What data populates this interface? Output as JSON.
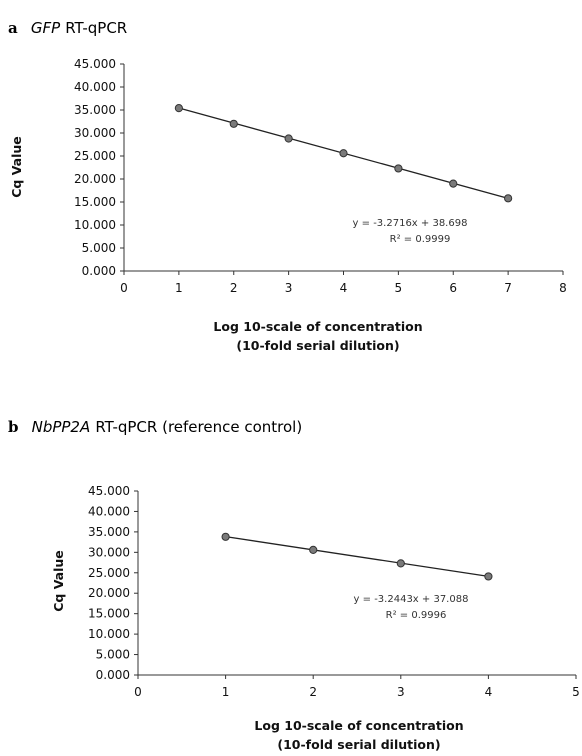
{
  "chart_data": [
    {
      "type": "scatter",
      "panel_letter": "a",
      "title_italic": "GFP",
      "title_rest": " RT-qPCR",
      "xlabel_line1": "Log 10-scale of concentration",
      "xlabel_line2": "(10-fold serial dilution)",
      "ylabel": "Cq Value",
      "xlim": [
        0,
        8
      ],
      "ylim": [
        0,
        45
      ],
      "xticks": [
        "0",
        "1",
        "2",
        "3",
        "4",
        "5",
        "6",
        "7",
        "8"
      ],
      "yticks": [
        "0.000",
        "5.000",
        "10.000",
        "15.000",
        "20.000",
        "25.000",
        "30.000",
        "35.000",
        "40.000",
        "45.000"
      ],
      "series": [
        {
          "x": [
            1,
            2,
            3,
            4,
            5,
            6,
            7
          ],
          "y": [
            35.4,
            32.0,
            28.8,
            25.6,
            22.3,
            19.0,
            15.8
          ]
        }
      ],
      "trendline": {
        "slope": -3.2716,
        "intercept": 38.698,
        "x_range": [
          1,
          7
        ]
      },
      "equation_text": "y = -3.2716x + 38.698",
      "r2_text": "R² = 0.9999",
      "grid": false
    },
    {
      "type": "scatter",
      "panel_letter": "b",
      "title_italic": "NbPP2A",
      "title_rest": " RT-qPCR (reference control)",
      "xlabel_line1": "Log 10-scale of concentration",
      "xlabel_line2": "(10-fold serial dilution)",
      "ylabel": "Cq Value",
      "xlim": [
        0,
        5
      ],
      "ylim": [
        0,
        45
      ],
      "xticks": [
        "0",
        "1",
        "2",
        "3",
        "4",
        "5"
      ],
      "yticks": [
        "0.000",
        "5.000",
        "10.000",
        "15.000",
        "20.000",
        "25.000",
        "30.000",
        "35.000",
        "40.000",
        "45.000"
      ],
      "series": [
        {
          "x": [
            1,
            2,
            3,
            4
          ],
          "y": [
            33.8,
            30.6,
            27.3,
            24.1
          ]
        }
      ],
      "trendline": {
        "slope": -3.2443,
        "intercept": 37.088,
        "x_range": [
          1,
          4
        ]
      },
      "equation_text": "y = -3.2443x + 37.088",
      "r2_text": "R² = 0.9996",
      "grid": false
    }
  ],
  "colors": {
    "axis": "#333333",
    "trendline": "#222222",
    "marker_fill": "#7a7a7a",
    "marker_stroke": "#333333"
  }
}
